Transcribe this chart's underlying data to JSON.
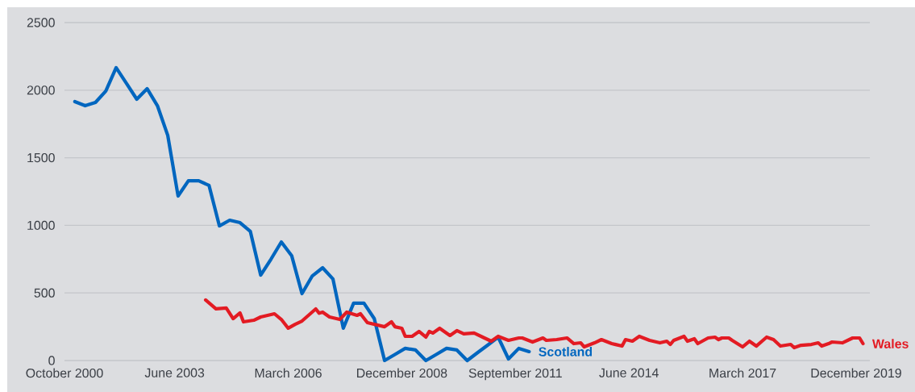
{
  "chart_data": {
    "type": "line",
    "grid": "y",
    "xlim": [
      "2000-10",
      "2020-04"
    ],
    "ylim": [
      0,
      2500
    ],
    "xticks": [
      {
        "value": "2000-10",
        "label": "October 2000"
      },
      {
        "value": "2003-06",
        "label": "June 2003"
      },
      {
        "value": "2006-03",
        "label": "March 2006"
      },
      {
        "value": "2008-12",
        "label": "December 2008"
      },
      {
        "value": "2011-09",
        "label": "September 2011"
      },
      {
        "value": "2014-06",
        "label": "June 2014"
      },
      {
        "value": "2017-03",
        "label": "March 2017"
      },
      {
        "value": "2019-12",
        "label": "December 2019"
      }
    ],
    "yticks": [
      0,
      500,
      1000,
      1500,
      2000,
      2500
    ],
    "series": [
      {
        "name": "Scotland",
        "color": "#0066bf",
        "x": [
          "2001-01",
          "2001-04",
          "2001-07",
          "2001-10",
          "2002-01",
          "2002-04",
          "2002-07",
          "2002-10",
          "2003-01",
          "2003-04",
          "2003-07",
          "2003-10",
          "2004-01",
          "2004-04",
          "2004-07",
          "2004-10",
          "2005-01",
          "2005-04",
          "2005-07",
          "2005-10",
          "2006-01",
          "2006-04",
          "2006-07",
          "2006-10",
          "2007-01",
          "2007-04",
          "2007-07",
          "2007-10",
          "2008-01",
          "2008-04",
          "2008-07",
          "2008-10",
          "2009-01",
          "2009-04",
          "2009-07",
          "2009-10",
          "2010-01",
          "2010-04",
          "2010-07",
          "2010-10",
          "2011-01",
          "2011-04",
          "2011-07",
          "2011-10",
          "2012-01"
        ],
        "values": [
          1915,
          1885,
          1909,
          1993,
          2166,
          2050,
          1933,
          2011,
          1885,
          1665,
          1217,
          1330,
          1330,
          1295,
          996,
          1038,
          1020,
          955,
          632,
          750,
          877,
          776,
          495,
          626,
          686,
          603,
          239,
          424,
          424,
          310,
          0,
          45,
          90,
          78,
          0,
          45,
          90,
          78,
          0,
          58,
          115,
          173,
          12,
          90,
          66
        ]
      },
      {
        "name": "Wales",
        "color": "#e31b23",
        "x": [
          "2004-03",
          "2004-06",
          "2004-09",
          "2004-11",
          "2005-01",
          "2005-02",
          "2005-05",
          "2005-07",
          "2005-11",
          "2006-01",
          "2006-03",
          "2006-05",
          "2006-07",
          "2006-11",
          "2006-12",
          "2007-01",
          "2007-03",
          "2007-06",
          "2007-08",
          "2007-11",
          "2007-12",
          "2008-02",
          "2008-07",
          "2008-09",
          "2008-10",
          "2008-12",
          "2009-01",
          "2009-03",
          "2009-05",
          "2009-07",
          "2009-08",
          "2009-09",
          "2009-11",
          "2010-02",
          "2010-04",
          "2010-06",
          "2010-09",
          "2010-12",
          "2011-02",
          "2011-04",
          "2011-07",
          "2011-10",
          "2011-11",
          "2012-02",
          "2012-05",
          "2012-06",
          "2012-09",
          "2012-12",
          "2013-02",
          "2013-04",
          "2013-05",
          "2013-08",
          "2013-10",
          "2014-01",
          "2014-04",
          "2014-05",
          "2014-07",
          "2014-09",
          "2014-12",
          "2015-03",
          "2015-05",
          "2015-06",
          "2015-07",
          "2015-10",
          "2015-11",
          "2016-01",
          "2016-02",
          "2016-05",
          "2016-07",
          "2016-08",
          "2016-09",
          "2016-11",
          "2016-12",
          "2017-03",
          "2017-05",
          "2017-07",
          "2017-10",
          "2017-12",
          "2018-02",
          "2018-05",
          "2018-06",
          "2018-08",
          "2018-11",
          "2019-01",
          "2019-02",
          "2019-04",
          "2019-05",
          "2019-08",
          "2019-11",
          "2020-01",
          "2020-02"
        ],
        "values": [
          448,
          382,
          388,
          310,
          352,
          286,
          298,
          322,
          346,
          304,
          239,
          268,
          292,
          382,
          350,
          358,
          322,
          304,
          358,
          334,
          346,
          280,
          250,
          286,
          250,
          239,
          179,
          179,
          215,
          173,
          215,
          203,
          239,
          185,
          221,
          197,
          203,
          167,
          143,
          179,
          149,
          167,
          167,
          137,
          167,
          149,
          155,
          167,
          125,
          131,
          101,
          131,
          155,
          125,
          107,
          155,
          143,
          179,
          149,
          131,
          143,
          119,
          149,
          179,
          143,
          161,
          125,
          167,
          173,
          155,
          167,
          167,
          149,
          101,
          143,
          107,
          173,
          155,
          107,
          119,
          95,
          113,
          119,
          131,
          107,
          125,
          137,
          131,
          167,
          167,
          125
        ]
      }
    ]
  }
}
